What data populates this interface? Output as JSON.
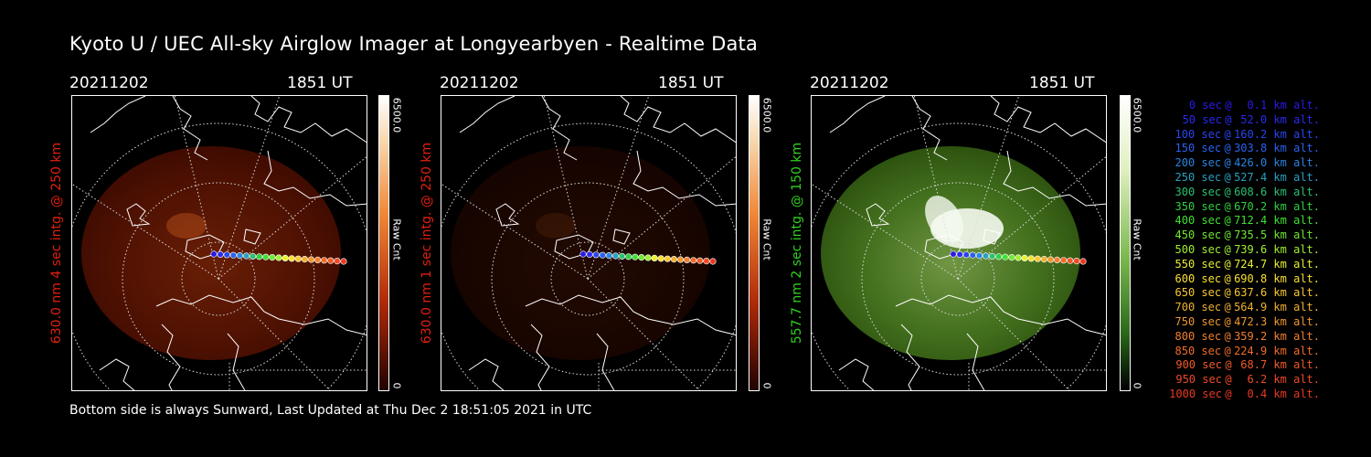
{
  "title": "Kyoto U / UEC All-sky Airglow Imager at Longyearbyen - Realtime Data",
  "footer": "Bottom side is always Sunward, Last Updated at Thu Dec  2 18:51:05 2021 in UTC",
  "panels": [
    {
      "date": "20211202",
      "time": "1851 UT",
      "side_label": "630.0 nm 4 sec intg. @ 250 km",
      "label_color": "#e02010",
      "colorbar_max": "6500.0",
      "colorbar_min": "0",
      "colorbar_unit": "Raw Cnt",
      "colormap": "red",
      "brightness": 0.55
    },
    {
      "date": "20211202",
      "time": "1851 UT",
      "side_label": "630.0 nm 1 sec intg. @ 250 km",
      "label_color": "#e02010",
      "colorbar_max": "6500.0",
      "colorbar_min": "0",
      "colorbar_unit": "Raw Cnt",
      "colormap": "red",
      "brightness": 0.18
    },
    {
      "date": "20211202",
      "time": "1851 UT",
      "side_label": "557.7 nm 2 sec intg. @ 150 km",
      "label_color": "#30d020",
      "colorbar_max": "6500.0",
      "colorbar_min": "0",
      "colorbar_unit": "Raw Cnt",
      "colormap": "green",
      "brightness": 0.75
    }
  ],
  "legend": [
    {
      "sec": "0 sec",
      "alt": "0.1 km alt.",
      "color": "#2a1ae6"
    },
    {
      "sec": "50 sec",
      "alt": "52.0 km alt.",
      "color": "#2a2af0"
    },
    {
      "sec": "100 sec",
      "alt": "160.2 km alt.",
      "color": "#2a45f0"
    },
    {
      "sec": "150 sec",
      "alt": "303.8 km alt.",
      "color": "#2a62f0"
    },
    {
      "sec": "200 sec",
      "alt": "426.0 km alt.",
      "color": "#2a84e0"
    },
    {
      "sec": "250 sec",
      "alt": "527.4 km alt.",
      "color": "#2aa0c0"
    },
    {
      "sec": "300 sec",
      "alt": "608.6 km alt.",
      "color": "#2ac070"
    },
    {
      "sec": "350 sec",
      "alt": "670.2 km alt.",
      "color": "#30d040"
    },
    {
      "sec": "400 sec",
      "alt": "712.4 km alt.",
      "color": "#40e030"
    },
    {
      "sec": "450 sec",
      "alt": "735.5 km alt.",
      "color": "#70e830"
    },
    {
      "sec": "500 sec",
      "alt": "739.6 km alt.",
      "color": "#a0f030"
    },
    {
      "sec": "550 sec",
      "alt": "724.7 km alt.",
      "color": "#e8f030"
    },
    {
      "sec": "600 sec",
      "alt": "690.8 km alt.",
      "color": "#f8e030"
    },
    {
      "sec": "650 sec",
      "alt": "637.6 km alt.",
      "color": "#f8c830"
    },
    {
      "sec": "700 sec",
      "alt": "564.9 km alt.",
      "color": "#f0b030"
    },
    {
      "sec": "750 sec",
      "alt": "472.3 km alt.",
      "color": "#f09830"
    },
    {
      "sec": "800 sec",
      "alt": "359.2 km alt.",
      "color": "#f08030"
    },
    {
      "sec": "850 sec",
      "alt": "224.9 km alt.",
      "color": "#f06c2a"
    },
    {
      "sec": "900 sec",
      "alt": "68.7 km alt.",
      "color": "#f05a28"
    },
    {
      "sec": "950 sec",
      "alt": "6.2 km alt.",
      "color": "#f04a26"
    },
    {
      "sec": "1000 sec",
      "alt": "0.4 km alt.",
      "color": "#e83a22"
    }
  ]
}
